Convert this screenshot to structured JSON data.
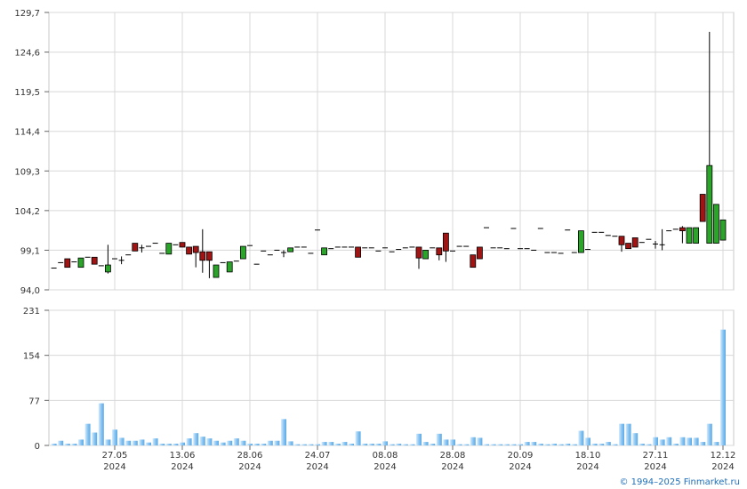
{
  "chart_data": [
    {
      "type": "candlestick",
      "ylim": [
        94.0,
        129.7
      ],
      "yticks": [
        {
          "value": 94.0,
          "label": "94,0"
        },
        {
          "value": 99.1,
          "label": "99,1"
        },
        {
          "value": 104.2,
          "label": "104,2"
        },
        {
          "value": 109.3,
          "label": "109,3"
        },
        {
          "value": 114.4,
          "label": "114,4"
        },
        {
          "value": 119.5,
          "label": "119,5"
        },
        {
          "value": 124.6,
          "label": "124,6"
        },
        {
          "value": 129.7,
          "label": "129,7"
        }
      ],
      "grid": true,
      "up_color": "#2aa52a",
      "down_color": "#a01414",
      "open": [
        96.8,
        97.5,
        98.0,
        97.6,
        96.9,
        98.2,
        98.2,
        97.1,
        96.3,
        98.0,
        97.8,
        98.5,
        100.0,
        99.4,
        99.6,
        100.0,
        98.7,
        98.6,
        99.8,
        100.1,
        99.5,
        99.6,
        98.9,
        98.9,
        95.6,
        97.5,
        96.3,
        97.7,
        98.0,
        99.7,
        97.3,
        99.0,
        98.5,
        99.1,
        98.8,
        98.9,
        99.5,
        99.5,
        98.7,
        101.7,
        98.5,
        99.3,
        99.5,
        99.5,
        99.5,
        99.5,
        99.4,
        99.4,
        99.0,
        99.4,
        98.9,
        99.2,
        99.4,
        99.5,
        99.5,
        98.0,
        99.4,
        99.4,
        101.3,
        99.0,
        99.6,
        99.6,
        98.5,
        99.5,
        102.0,
        99.4,
        99.4,
        99.3,
        101.9,
        99.3,
        99.3,
        99.1,
        101.9,
        98.8,
        98.8,
        98.7,
        101.7,
        98.8,
        98.8,
        99.2,
        101.4,
        101.4,
        101.0,
        100.9,
        100.9,
        100.0,
        100.7,
        100.1,
        100.5,
        99.9,
        99.8,
        101.6,
        101.8,
        102.0,
        100.0,
        100.0,
        106.3,
        100.0,
        100.0,
        100.4
      ],
      "high": [
        96.8,
        97.5,
        98.0,
        97.6,
        98.1,
        98.2,
        98.2,
        97.1,
        99.8,
        98.0,
        98.3,
        98.5,
        100.0,
        99.8,
        99.6,
        100.0,
        98.7,
        100.0,
        99.8,
        100.1,
        99.5,
        99.6,
        101.8,
        98.9,
        97.2,
        97.5,
        97.6,
        97.7,
        99.6,
        99.7,
        97.3,
        99.0,
        98.5,
        99.1,
        99.1,
        99.4,
        99.5,
        99.5,
        98.7,
        101.7,
        99.4,
        99.3,
        99.5,
        99.5,
        99.5,
        99.5,
        99.4,
        99.4,
        99.0,
        99.4,
        98.9,
        99.2,
        99.4,
        99.5,
        99.5,
        99.1,
        99.4,
        99.4,
        101.3,
        99.0,
        99.6,
        99.6,
        98.5,
        99.5,
        102.0,
        99.4,
        99.4,
        99.3,
        101.9,
        99.3,
        99.3,
        99.1,
        101.9,
        98.8,
        98.8,
        98.7,
        101.7,
        98.8,
        101.6,
        99.2,
        101.4,
        101.4,
        101.0,
        100.9,
        100.9,
        100.0,
        100.7,
        100.1,
        100.5,
        100.3,
        101.8,
        101.6,
        101.8,
        102.2,
        102.0,
        102.0,
        106.3,
        127.2,
        105.0,
        103.0
      ],
      "low": [
        96.8,
        97.5,
        96.9,
        97.6,
        96.9,
        98.2,
        97.3,
        97.1,
        96.1,
        98.0,
        97.3,
        98.5,
        99.0,
        98.8,
        99.6,
        100.0,
        98.7,
        98.6,
        99.8,
        99.5,
        98.6,
        96.9,
        96.2,
        95.5,
        95.6,
        97.5,
        96.3,
        97.7,
        98.0,
        99.7,
        97.3,
        99.0,
        98.5,
        99.1,
        98.2,
        98.9,
        99.5,
        99.5,
        98.7,
        101.7,
        98.5,
        99.3,
        99.5,
        99.5,
        99.5,
        98.2,
        99.4,
        99.4,
        99.0,
        99.4,
        98.9,
        99.2,
        99.4,
        99.5,
        96.7,
        98.0,
        99.4,
        97.8,
        97.6,
        99.0,
        99.6,
        99.6,
        96.9,
        98.0,
        102.0,
        99.4,
        99.4,
        99.3,
        101.9,
        99.3,
        99.3,
        99.1,
        101.9,
        98.8,
        98.8,
        98.7,
        101.7,
        98.8,
        98.8,
        99.2,
        101.4,
        101.4,
        101.0,
        100.9,
        98.9,
        99.3,
        99.5,
        100.1,
        100.5,
        99.3,
        99.1,
        101.6,
        101.8,
        100.0,
        100.0,
        100.0,
        102.8,
        100.0,
        100.0,
        100.4
      ],
      "close": [
        96.8,
        97.5,
        96.9,
        97.6,
        98.1,
        98.2,
        97.3,
        97.1,
        97.2,
        98.0,
        97.8,
        98.5,
        99.0,
        99.4,
        99.6,
        100.0,
        98.7,
        100.0,
        99.8,
        99.5,
        98.6,
        98.8,
        97.8,
        97.8,
        97.2,
        97.5,
        97.6,
        97.7,
        99.6,
        99.7,
        97.3,
        99.0,
        98.5,
        99.1,
        98.8,
        99.4,
        99.5,
        99.5,
        98.7,
        101.7,
        99.4,
        99.3,
        99.5,
        99.5,
        99.5,
        98.2,
        99.4,
        99.4,
        99.0,
        99.4,
        98.9,
        99.2,
        99.4,
        99.5,
        98.1,
        99.1,
        99.4,
        98.5,
        99.0,
        99.0,
        99.6,
        99.6,
        96.9,
        98.0,
        102.0,
        99.4,
        99.4,
        99.3,
        101.9,
        99.3,
        99.3,
        99.1,
        101.9,
        98.8,
        98.8,
        98.7,
        101.7,
        98.8,
        101.6,
        99.2,
        101.4,
        101.4,
        101.0,
        100.9,
        99.8,
        99.3,
        99.5,
        100.1,
        100.5,
        99.9,
        99.8,
        101.6,
        101.8,
        101.6,
        102.0,
        102.0,
        102.8,
        110.0,
        105.0,
        103.0
      ]
    },
    {
      "type": "bar",
      "ylim": [
        0,
        231
      ],
      "yticks": [
        0,
        77,
        154,
        231
      ],
      "grid": true,
      "color": "#8cc6f2",
      "categories": [
        null,
        null,
        null,
        null,
        null,
        null,
        null,
        null,
        null,
        [
          "27.05",
          "2024"
        ],
        null,
        null,
        null,
        null,
        null,
        null,
        null,
        null,
        null,
        [
          "13.06",
          "2024"
        ],
        null,
        null,
        null,
        null,
        null,
        null,
        null,
        null,
        null,
        [
          "28.06",
          "2024"
        ],
        null,
        null,
        null,
        null,
        null,
        null,
        null,
        null,
        null,
        [
          "24.07",
          "2024"
        ],
        null,
        null,
        null,
        null,
        null,
        null,
        null,
        null,
        null,
        [
          "08.08",
          "2024"
        ],
        null,
        null,
        null,
        null,
        null,
        null,
        null,
        null,
        null,
        [
          "28.08",
          "2024"
        ],
        null,
        null,
        null,
        null,
        null,
        null,
        null,
        null,
        null,
        [
          "20.09",
          "2024"
        ],
        null,
        null,
        null,
        null,
        null,
        null,
        null,
        null,
        null,
        [
          "18.10",
          "2024"
        ],
        null,
        null,
        null,
        null,
        null,
        null,
        null,
        null,
        null,
        [
          "27.11",
          "2024"
        ],
        null,
        null,
        null,
        null,
        null,
        null,
        null,
        null,
        null,
        [
          "12.12",
          "2024"
        ]
      ],
      "values": [
        3,
        8,
        3,
        3,
        10,
        37,
        22,
        72,
        10,
        27,
        13,
        8,
        8,
        10,
        5,
        12,
        3,
        3,
        3,
        5,
        12,
        21,
        15,
        12,
        8,
        5,
        8,
        12,
        8,
        3,
        3,
        3,
        8,
        8,
        45,
        7,
        2,
        2,
        2,
        2,
        6,
        6,
        3,
        6,
        3,
        24,
        3,
        3,
        3,
        7,
        2,
        3,
        2,
        2,
        20,
        6,
        3,
        20,
        10,
        10,
        2,
        2,
        14,
        13,
        2,
        2,
        2,
        2,
        2,
        2,
        6,
        6,
        3,
        2,
        3,
        2,
        3,
        2,
        25,
        13,
        3,
        3,
        6,
        2,
        37,
        37,
        21,
        3,
        2,
        14,
        10,
        14,
        3,
        14,
        13,
        13,
        6,
        37,
        6,
        198
      ]
    }
  ],
  "footer": "© 1994–2025 Finmarket.ru"
}
